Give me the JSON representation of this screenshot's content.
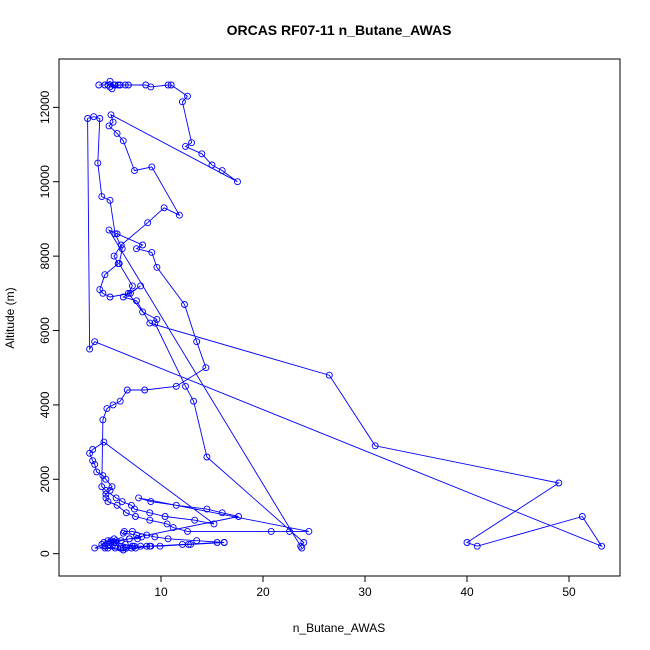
{
  "chart_data": {
    "type": "line",
    "title": "ORCAS RF07-11 n_Butane_AWAS",
    "xlabel": "n_Butane_AWAS",
    "ylabel": "Altitude (m)",
    "xlim": [
      0,
      55
    ],
    "ylim": [
      -600,
      13300
    ],
    "xticks": [
      10,
      20,
      30,
      40,
      50
    ],
    "yticks": [
      0,
      2000,
      4000,
      6000,
      8000,
      10000,
      12000
    ],
    "grid": false,
    "legend": "none",
    "series_color": "#0000ff",
    "marker": "open-circle",
    "x": [
      3.9,
      4.5,
      5.0,
      5.4,
      5.2,
      5.5,
      4.8,
      5.0,
      6.0,
      5.8,
      6.5,
      6.8,
      8.5,
      9.0,
      10.7,
      11.0,
      12.6,
      12.1,
      13.0,
      12.4,
      14.0,
      15.0,
      16.0,
      17.5,
      5.1,
      5.3,
      4.9,
      5.7,
      6.3,
      7.4,
      9.1,
      11.8,
      10.3,
      8.7,
      6.1,
      5.4,
      5.8,
      4.5,
      4.0,
      4.3,
      5.0,
      7.0,
      8.0,
      6.3,
      7.6,
      8.9,
      26.5,
      31.0,
      49.0,
      40.0,
      41.0,
      51.3,
      53.2,
      3.5,
      3.0,
      2.8,
      3.4,
      4.0,
      3.8,
      4.2,
      5.0,
      5.5,
      6.2,
      5.9,
      7.2,
      6.8,
      8.2,
      9.6,
      9.4,
      12.4,
      13.2,
      14.5,
      24.0,
      23.7,
      23.8,
      4.9,
      5.7,
      8.2,
      7.6,
      9.1,
      9.6,
      12.3,
      13.5,
      14.4,
      11.5,
      8.4,
      6.7,
      6.0,
      5.3,
      4.7,
      4.3,
      4.2,
      4.6,
      5.6,
      6.2,
      7.1,
      7.4,
      8.9,
      10.4,
      13.3,
      15.2,
      4.4,
      3.3,
      3.0,
      3.3,
      3.5,
      3.7,
      4.3,
      4.6,
      5.2,
      5.0,
      4.6,
      4.6,
      4.8,
      5.7,
      6.6,
      7.5,
      8.9,
      10.6,
      11.2,
      12.6,
      20.8,
      22.6,
      24.5,
      7.8,
      9.0,
      11.5,
      14.5,
      16.0,
      17.6,
      6.9,
      5.6,
      5.0,
      4.9,
      5.6,
      6.1,
      6.9,
      7.7,
      8.1,
      7.6,
      6.3,
      6.4,
      7.2,
      8.6,
      9.4,
      10.7,
      13.5,
      16.2,
      12.9,
      8.6,
      7.2,
      6.6,
      6.3,
      6.0,
      5.5,
      4.8,
      4.5,
      4.2,
      4.4,
      4.8,
      5.4,
      6.1,
      6.6,
      7.5,
      8.9,
      9.9,
      12.7,
      15.5,
      16.2,
      12.1,
      9.0,
      7.1,
      6.3,
      4.5,
      3.5,
      5.1,
      5.3,
      5.4,
      6.5,
      7.2,
      7.4,
      8.0
    ],
    "y": [
      12600,
      12600,
      12700,
      12600,
      12500,
      12600,
      12600,
      12550,
      12600,
      12600,
      12600,
      12600,
      12600,
      12550,
      12600,
      12600,
      12300,
      12150,
      11050,
      10950,
      10750,
      10450,
      10300,
      10000,
      11800,
      11600,
      11500,
      11300,
      11100,
      10300,
      10400,
      9100,
      9300,
      8900,
      8300,
      8000,
      7800,
      7500,
      7100,
      7000,
      6900,
      7000,
      7200,
      6900,
      6800,
      6200,
      4800,
      2900,
      1900,
      300,
      200,
      1000,
      200,
      5700,
      5500,
      11700,
      11750,
      11700,
      10500,
      9600,
      9500,
      8600,
      8200,
      7800,
      7200,
      7000,
      6500,
      6300,
      6200,
      4500,
      4100,
      2600,
      300,
      200,
      150,
      8700,
      8600,
      8300,
      8200,
      8100,
      7700,
      6700,
      5700,
      5000,
      4500,
      4400,
      4400,
      4100,
      4000,
      3900,
      3600,
      1800,
      1700,
      1500,
      1400,
      1300,
      1200,
      1100,
      1000,
      900,
      800,
      3000,
      2800,
      2700,
      2500,
      2400,
      2200,
      2100,
      2000,
      1800,
      1700,
      1600,
      1500,
      1400,
      1300,
      1100,
      1000,
      900,
      800,
      700,
      600,
      600,
      600,
      600,
      1500,
      1400,
      1300,
      1200,
      1100,
      1000,
      400,
      350,
      300,
      250,
      300,
      350,
      400,
      400,
      450,
      500,
      550,
      600,
      600,
      500,
      450,
      400,
      350,
      300,
      250,
      200,
      200,
      150,
      150,
      150,
      150,
      150,
      200,
      250,
      300,
      350,
      400,
      150,
      150,
      150,
      200,
      200,
      250,
      300,
      300,
      250,
      200,
      150,
      100,
      150,
      150,
      350,
      250,
      300,
      250,
      200,
      200,
      200
    ]
  }
}
